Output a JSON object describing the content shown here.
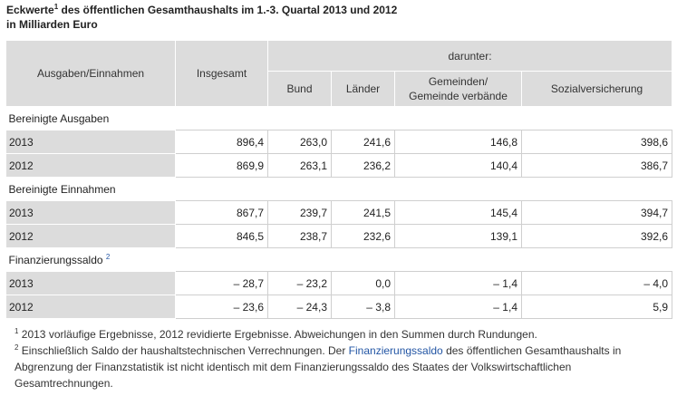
{
  "title": {
    "part1": "Eckwerte",
    "sup": "1",
    "part2": " des öffentlichen Gesamthaushalts im 1.-3. Quartal 2013 und 2012",
    "line2": "in Milliarden Euro"
  },
  "header": {
    "col0": "Ausgaben/Einnahmen",
    "col1": "Insgesamt",
    "darunter": "darunter:",
    "bund": "Bund",
    "laender": "Länder",
    "gemeinden_line1": "Gemeinden/",
    "gemeinden_line2": "Gemeinde verbände",
    "sozial": "Sozialversicherung"
  },
  "sections": [
    {
      "label": "Bereinigte Ausgaben",
      "sup": "",
      "rows": [
        {
          "year": "2013",
          "insgesamt": "896,4",
          "bund": "263,0",
          "laender": "241,6",
          "gemeinden": "146,8",
          "sozial": "398,6"
        },
        {
          "year": "2012",
          "insgesamt": "869,9",
          "bund": "263,1",
          "laender": "236,2",
          "gemeinden": "140,4",
          "sozial": "386,7"
        }
      ]
    },
    {
      "label": "Bereinigte Einnahmen",
      "sup": "",
      "rows": [
        {
          "year": "2013",
          "insgesamt": "867,7",
          "bund": "239,7",
          "laender": "241,5",
          "gemeinden": "145,4",
          "sozial": "394,7"
        },
        {
          "year": "2012",
          "insgesamt": "846,5",
          "bund": "238,7",
          "laender": "232,6",
          "gemeinden": "139,1",
          "sozial": "392,6"
        }
      ]
    },
    {
      "label": "Finanzierungssaldo",
      "sup": "2",
      "rows": [
        {
          "year": "2013",
          "insgesamt": "– 28,7",
          "bund": "– 23,2",
          "laender": "0,0",
          "gemeinden": "– 1,4",
          "sozial": "– 4,0"
        },
        {
          "year": "2012",
          "insgesamt": "– 23,6",
          "bund": "– 24,3",
          "laender": "– 3,8",
          "gemeinden": "– 1,4",
          "sozial": "5,9"
        }
      ]
    }
  ],
  "footnotes": {
    "f1_sup": "1",
    "f1_text": " 2013 vorläufige Ergebnisse, 2012 revidierte Ergebnisse. Abweichungen in den Summen durch Rundungen.",
    "f2_sup": "2",
    "f2_text_a": " Einschließlich Saldo der haushaltstechnischen Verrechnungen. Der ",
    "f2_link": "Finanzierungssaldo",
    "f2_text_b": " des öffentlichen Gesamthaushalts in Abgrenzung der Finanzstatistik ist nicht identisch mit dem Finanzierungssaldo des Staates der Volkswirtschaftlichen Gesamtrechnungen."
  },
  "colors": {
    "header_bg": "#dcdcdc",
    "link": "#2255a4"
  }
}
